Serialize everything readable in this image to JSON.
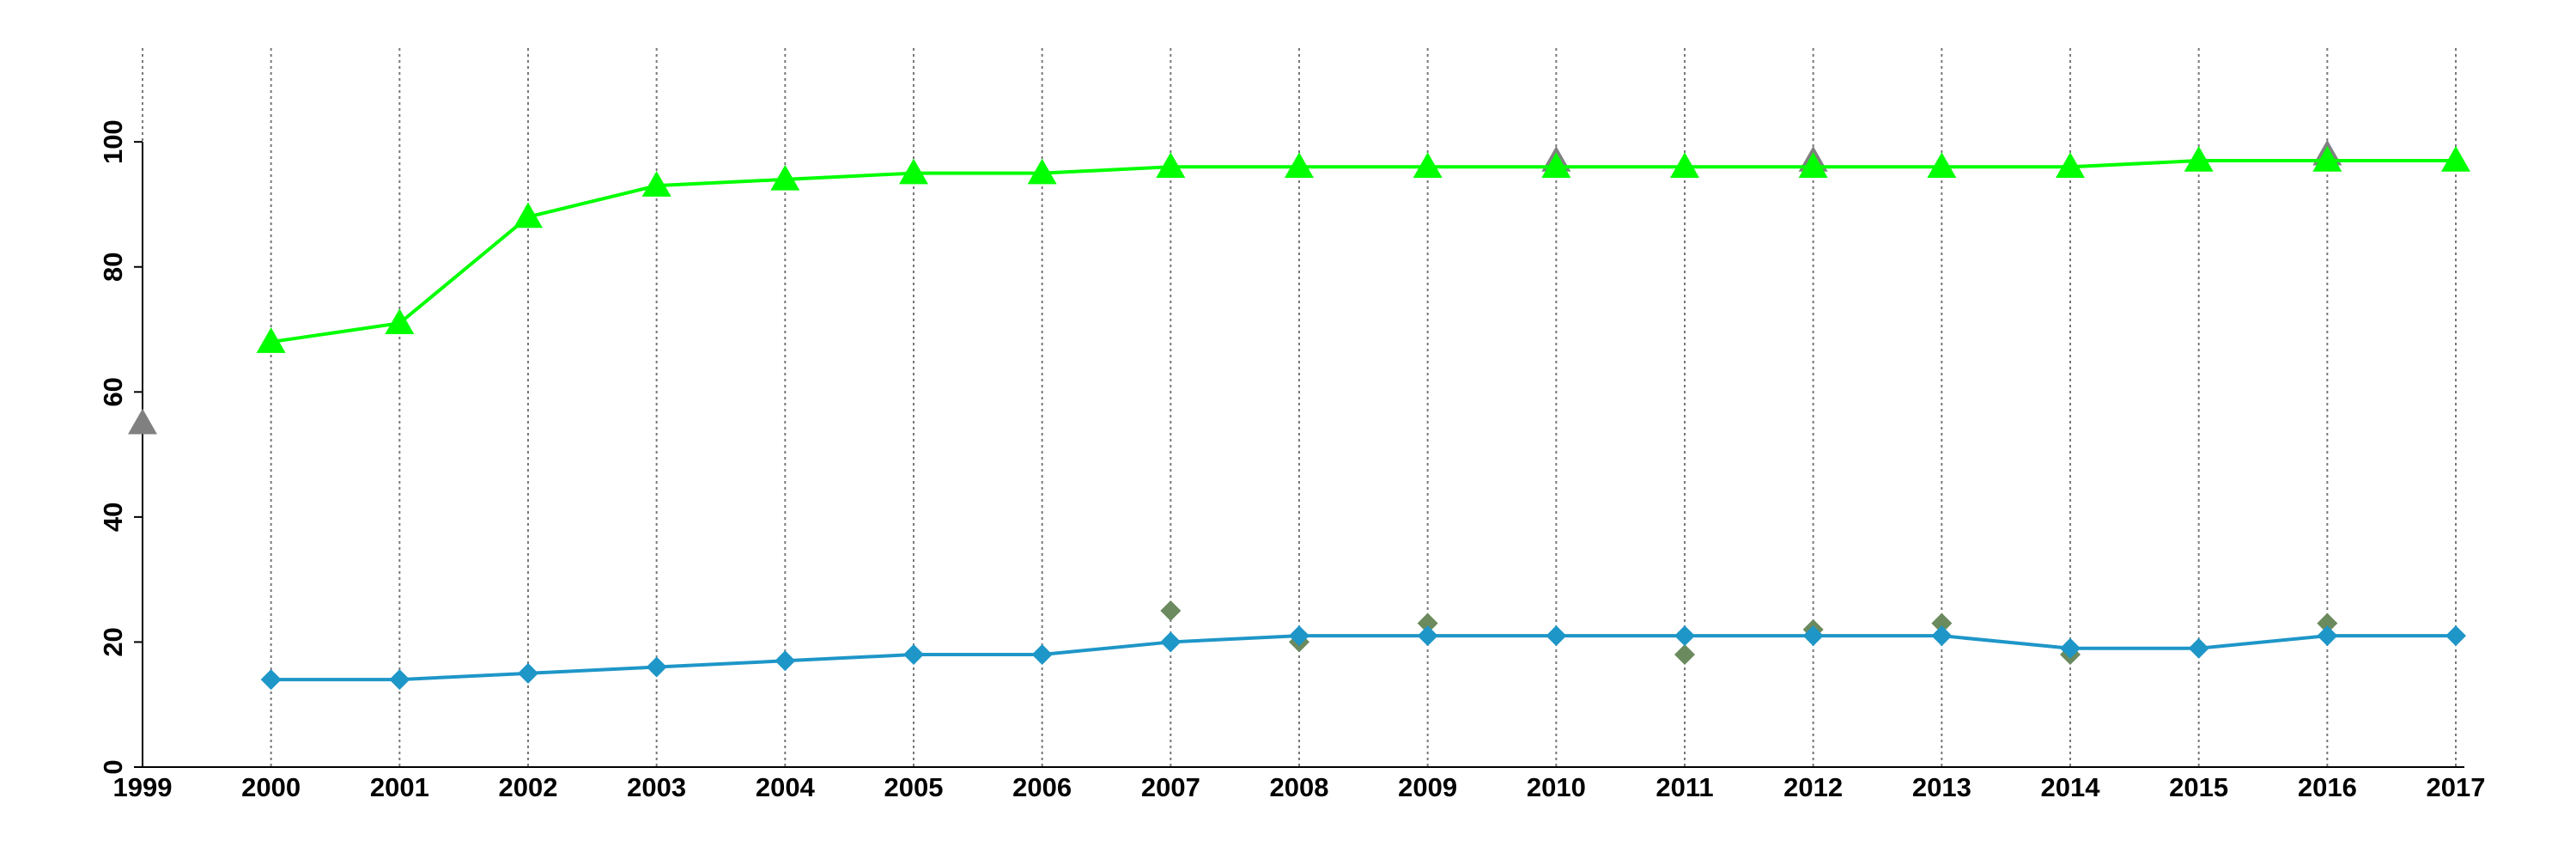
{
  "chart_data": {
    "type": "line",
    "xlim": [
      1999,
      2017
    ],
    "xticks": [
      1999,
      2000,
      2001,
      2002,
      2003,
      2004,
      2005,
      2006,
      2007,
      2008,
      2009,
      2010,
      2011,
      2012,
      2013,
      2014,
      2015,
      2016,
      2017
    ],
    "ylim": [
      0,
      115
    ],
    "yticks": [
      0,
      20,
      40,
      60,
      80,
      100
    ],
    "grid": true,
    "series": [
      {
        "color": "#808080",
        "marker": "triangle",
        "line": false,
        "x": [
          1999,
          2010,
          2012,
          2016
        ],
        "values": [
          55,
          97,
          97,
          98
        ]
      },
      {
        "color": "#6b8a5e",
        "marker": "diamond",
        "line": false,
        "x": [
          2007,
          2008,
          2009,
          2011,
          2012,
          2013,
          2014,
          2016
        ],
        "values": [
          25,
          20,
          23,
          18,
          22,
          23,
          18,
          23
        ]
      },
      {
        "color": "#00ff00",
        "marker": "triangle",
        "line": true,
        "x": [
          2000,
          2001,
          2002,
          2003,
          2004,
          2005,
          2006,
          2007,
          2008,
          2009,
          2010,
          2011,
          2012,
          2013,
          2014,
          2015,
          2016,
          2017
        ],
        "values": [
          68,
          71,
          88,
          93,
          94,
          95,
          95,
          96,
          96,
          96,
          96,
          96,
          96,
          96,
          96,
          97,
          97,
          97
        ]
      },
      {
        "color": "#1e96c8",
        "marker": "diamond",
        "line": true,
        "x": [
          2000,
          2001,
          2002,
          2003,
          2004,
          2005,
          2006,
          2007,
          2008,
          2009,
          2010,
          2011,
          2012,
          2013,
          2014,
          2015,
          2016,
          2017
        ],
        "values": [
          14,
          14,
          15,
          16,
          17,
          18,
          18,
          20,
          21,
          21,
          21,
          21,
          21,
          21,
          19,
          19,
          21,
          21
        ]
      }
    ]
  }
}
